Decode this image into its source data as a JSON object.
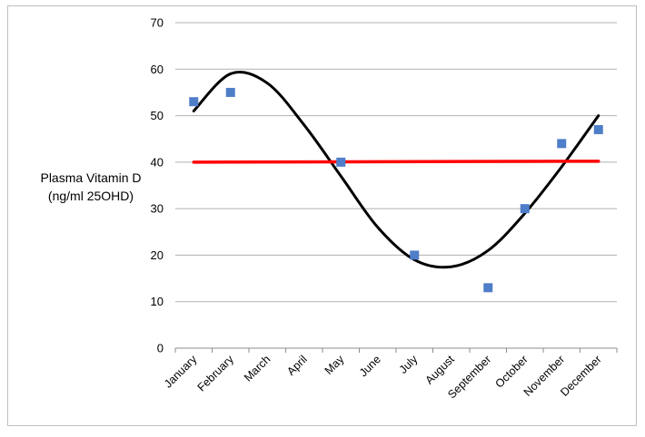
{
  "chart_data": {
    "type": "scatter",
    "title": "",
    "xlabel": "",
    "ylabel_lines": [
      "Plasma Vitamin D",
      "(ng/ml 25OHD)"
    ],
    "categories": [
      "January",
      "February",
      "March",
      "April",
      "May",
      "June",
      "July",
      "August",
      "September",
      "October",
      "November",
      "December"
    ],
    "ylim": [
      0,
      70
    ],
    "yticks": [
      0,
      10,
      20,
      30,
      40,
      50,
      60,
      70
    ],
    "grid": "horizontal",
    "legend": "none",
    "series": [
      {
        "type": "scatter",
        "marker": "square",
        "color": "#4f7ec9",
        "points": [
          {
            "x": "January",
            "y": 53
          },
          {
            "x": "February",
            "y": 55
          },
          {
            "x": "May",
            "y": 40
          },
          {
            "x": "July",
            "y": 20
          },
          {
            "x": "September",
            "y": 13
          },
          {
            "x": "October",
            "y": 30
          },
          {
            "x": "November",
            "y": 44
          },
          {
            "x": "December",
            "y": 47
          }
        ]
      },
      {
        "type": "line",
        "color": "#000000",
        "smooth": true,
        "points": [
          {
            "x": "January",
            "y": 51
          },
          {
            "x": "February",
            "y": 59
          },
          {
            "x": "March",
            "y": 57
          },
          {
            "x": "April",
            "y": 48
          },
          {
            "x": "May",
            "y": 37
          },
          {
            "x": "June",
            "y": 26
          },
          {
            "x": "July",
            "y": 19
          },
          {
            "x": "August",
            "y": 17.5
          },
          {
            "x": "September",
            "y": 21
          },
          {
            "x": "October",
            "y": 29
          },
          {
            "x": "November",
            "y": 39
          },
          {
            "x": "December",
            "y": 50
          }
        ]
      },
      {
        "type": "line",
        "color": "#ff0000",
        "points": [
          {
            "x": "January",
            "y": 40
          },
          {
            "x": "December",
            "y": 40.2
          }
        ]
      }
    ]
  }
}
